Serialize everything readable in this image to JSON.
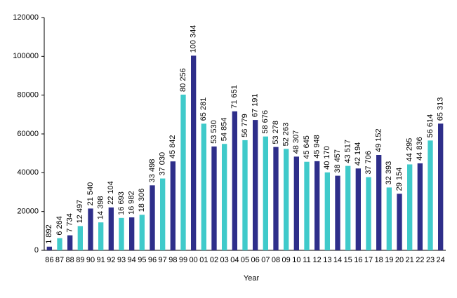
{
  "chart_data": {
    "type": "bar",
    "x_label": "Year",
    "categories": [
      "86",
      "87",
      "88",
      "89",
      "90",
      "91",
      "92",
      "93",
      "94",
      "95",
      "96",
      "97",
      "98",
      "99",
      "00",
      "01",
      "02",
      "03",
      "04",
      "05",
      "06",
      "07",
      "08",
      "09",
      "10",
      "11",
      "12",
      "13",
      "14",
      "15",
      "16",
      "17",
      "18",
      "19",
      "20",
      "21",
      "22",
      "23",
      "24"
    ],
    "values": [
      1892,
      6264,
      7734,
      12497,
      21540,
      14398,
      22104,
      16693,
      16982,
      18306,
      33498,
      37030,
      45842,
      80256,
      100344,
      65281,
      53530,
      54854,
      71651,
      56779,
      67191,
      58676,
      53278,
      52263,
      48307,
      45645,
      45948,
      40170,
      38457,
      43517,
      42194,
      37706,
      49152,
      32393,
      29154,
      44295,
      44836,
      56614,
      65313
    ],
    "value_labels": [
      "1 892",
      "6 264",
      "7 734",
      "12 497",
      "21 540",
      "14 398",
      "22 104",
      "16 693",
      "16 982",
      "18 306",
      "33 498",
      "37 030",
      "45 842",
      "80 256",
      "100 344",
      "65 281",
      "53 530",
      "54 854",
      "71 651",
      "56 779",
      "67 191",
      "58 676",
      "53 278",
      "52 263",
      "48 307",
      "45 645",
      "45 948",
      "40 170",
      "38 457",
      "43 517",
      "42 194",
      "37 706",
      "49 152",
      "32 393",
      "29 154",
      "44 295",
      "44 836",
      "56 614",
      "65 313"
    ],
    "colors": [
      "#2e2e8a",
      "#3fcaca"
    ],
    "ylim": [
      0,
      120000
    ],
    "yticks": [
      0,
      20000,
      40000,
      60000,
      80000,
      100000,
      120000
    ],
    "grid": false
  }
}
